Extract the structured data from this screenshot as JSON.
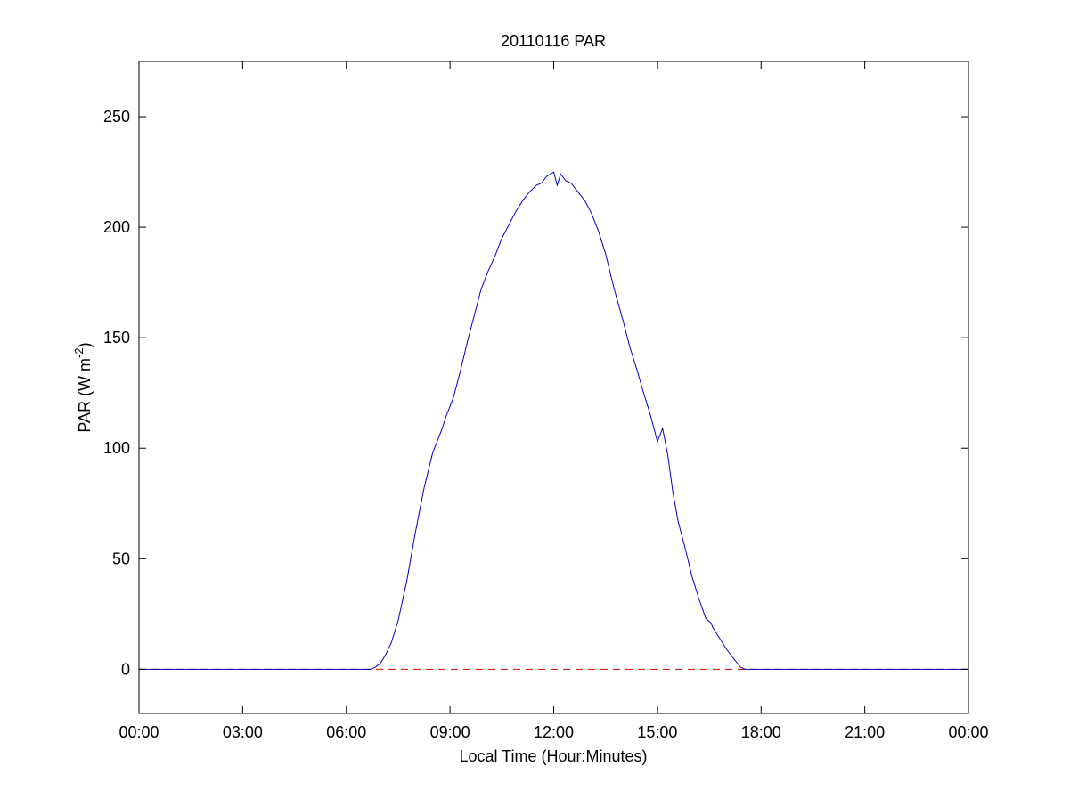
{
  "chart_data": {
    "type": "line",
    "title": "20110116 PAR",
    "xlabel": "Local Time (Hour:Minutes)",
    "ylabel": {
      "main": "PAR (W m",
      "superscript": "-2",
      "close": ")"
    },
    "xlim": [
      0,
      24
    ],
    "ylim": [
      -20,
      275
    ],
    "x_unit": "hours",
    "xticks": [
      0,
      3,
      6,
      9,
      12,
      15,
      18,
      21,
      24
    ],
    "xtick_labels": [
      "00:00",
      "03:00",
      "06:00",
      "09:00",
      "12:00",
      "15:00",
      "18:00",
      "21:00",
      "00:00"
    ],
    "yticks": [
      0,
      50,
      100,
      150,
      200,
      250
    ],
    "ytick_labels": [
      "0",
      "50",
      "100",
      "150",
      "200",
      "250"
    ],
    "grid": false,
    "series": [
      {
        "style": "solid",
        "color": "#0000cc",
        "x": [
          0,
          6.7,
          6.85,
          7.0,
          7.15,
          7.3,
          7.5,
          7.75,
          8.0,
          8.25,
          8.5,
          8.75,
          8.9,
          9.1,
          9.3,
          9.5,
          9.7,
          9.9,
          10.1,
          10.3,
          10.5,
          10.7,
          10.9,
          11.1,
          11.3,
          11.5,
          11.65,
          11.8,
          12.0,
          12.1,
          12.2,
          12.35,
          12.5,
          12.7,
          12.9,
          13.1,
          13.3,
          13.5,
          13.75,
          14.0,
          14.2,
          14.4,
          14.6,
          14.8,
          15.0,
          15.15,
          15.3,
          15.45,
          15.6,
          15.8,
          16.0,
          16.2,
          16.4,
          16.55,
          16.6,
          16.8,
          17.0,
          17.2,
          17.4,
          17.55,
          18.0,
          24
        ],
        "y": [
          0,
          0,
          1,
          3,
          7,
          12,
          22,
          40,
          62,
          82,
          98,
          108,
          115,
          123,
          135,
          148,
          160,
          172,
          180,
          187,
          195,
          201,
          207,
          212,
          216,
          219,
          220,
          223,
          225,
          219,
          224,
          221,
          220,
          216,
          212,
          206,
          198,
          188,
          172,
          158,
          146,
          136,
          125,
          115,
          103,
          109,
          97,
          80,
          67,
          55,
          42,
          32,
          23,
          21,
          19,
          14,
          9,
          5,
          1,
          0,
          0,
          0
        ]
      },
      {
        "style": "dashed",
        "color": "#dd0000",
        "x": [
          0,
          24
        ],
        "y": [
          0,
          0
        ]
      }
    ]
  }
}
